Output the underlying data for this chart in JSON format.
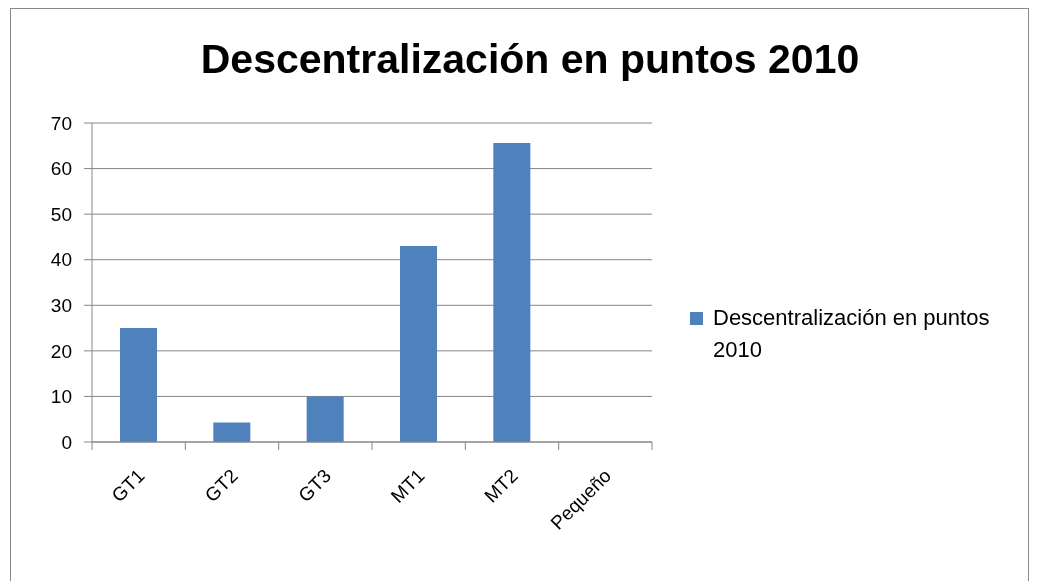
{
  "chart_data": {
    "type": "bar",
    "title": "Descentralización en puntos 2010",
    "categories": [
      "GT1",
      "GT2",
      "GT3",
      "MT1",
      "MT2",
      "Pequeño"
    ],
    "series": [
      {
        "name": "Descentralización en puntos 2010",
        "color": "#4f81bd",
        "values": [
          25,
          4.3,
          10,
          43,
          65.6,
          null
        ]
      }
    ],
    "ylim": [
      0,
      70
    ],
    "yticks": [
      0,
      10,
      20,
      30,
      40,
      50,
      60,
      70
    ],
    "grid": "y",
    "legend": "right"
  }
}
